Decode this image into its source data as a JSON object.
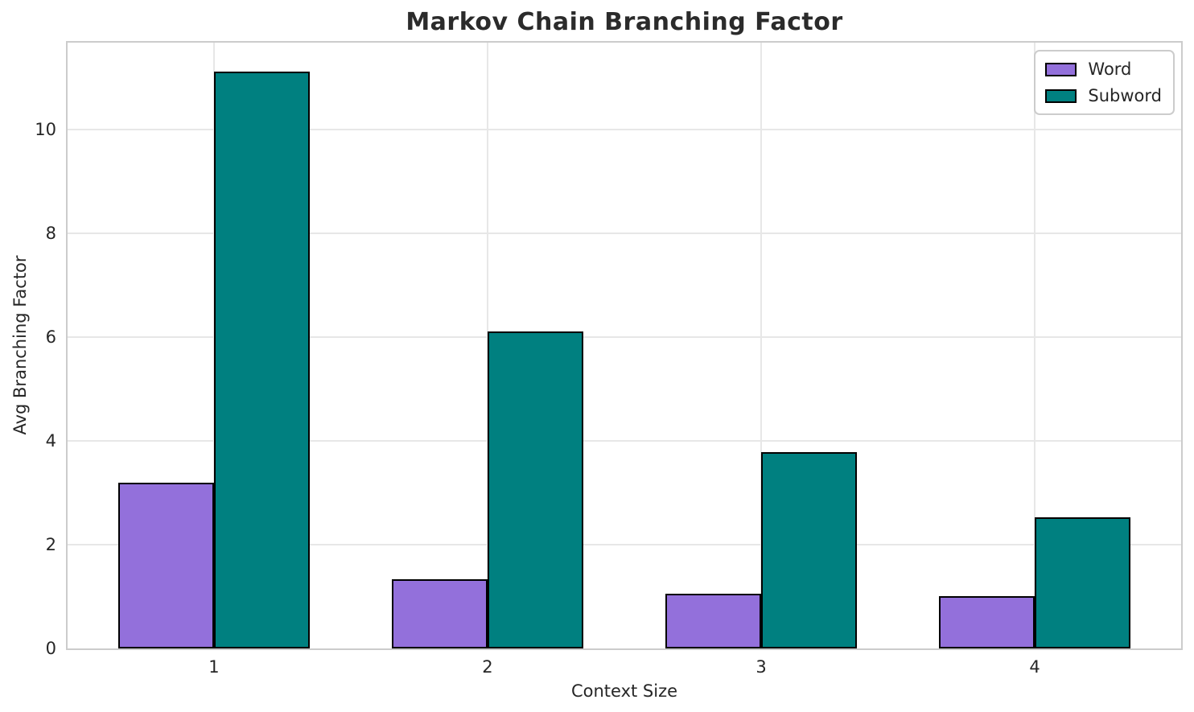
{
  "chart_data": {
    "type": "bar",
    "title": "Markov Chain Branching Factor",
    "xlabel": "Context Size",
    "ylabel": "Avg Branching Factor",
    "categories": [
      "1",
      "2",
      "3",
      "4"
    ],
    "series": [
      {
        "name": "Word",
        "color": "#9370DB",
        "values": [
          3.2,
          1.33,
          1.05,
          1.0
        ]
      },
      {
        "name": "Subword",
        "color": "#008080",
        "values": [
          11.12,
          6.1,
          3.78,
          2.53
        ]
      }
    ],
    "ylim": [
      0,
      11.67
    ],
    "yticks": [
      0,
      2,
      4,
      6,
      8,
      10
    ],
    "grid": true,
    "legend_position": "upper right",
    "bar_edge_color": "#000000",
    "bar_width_ratio": 0.35
  }
}
